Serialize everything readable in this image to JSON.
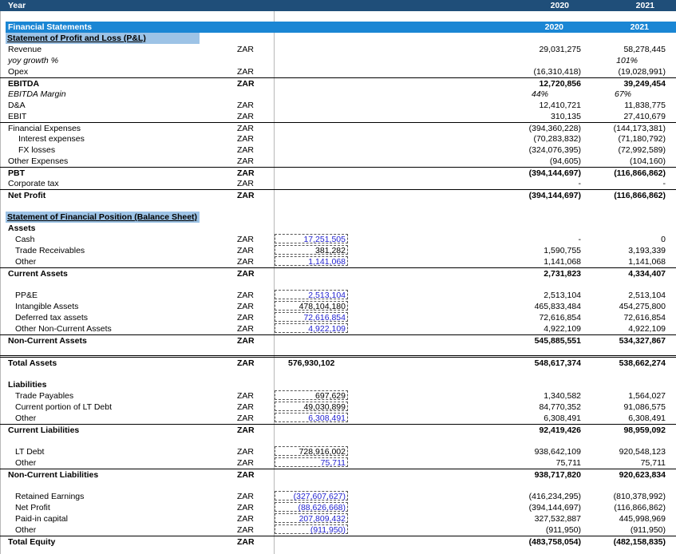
{
  "header": {
    "year_label": "Year",
    "y2020": "2020",
    "y2021": "2021"
  },
  "fs": {
    "title": "Financial Statements",
    "y2020": "2020",
    "y2021": "2021"
  },
  "pl": {
    "title": "Statement of Profit and Loss (P&L)",
    "rows": [
      {
        "label": "Revenue",
        "unit": "ZAR",
        "v2020": "29,031,275",
        "v2021": "58,278,445"
      },
      {
        "label": "yoy growth %",
        "unit": "",
        "v2020": "",
        "v2021": "101%"
      },
      {
        "label": "Opex",
        "unit": "ZAR",
        "v2020": "(16,310,418)",
        "v2021": "(19,028,991)"
      },
      {
        "label": "EBITDA",
        "unit": "ZAR",
        "v2020": "12,720,856",
        "v2021": "39,249,454"
      },
      {
        "label": "EBITDA Margin",
        "unit": "",
        "v2020": "44%",
        "v2021": "67%"
      },
      {
        "label": "D&A",
        "unit": "ZAR",
        "v2020": "12,410,721",
        "v2021": "11,838,775"
      },
      {
        "label": "EBIT",
        "unit": "ZAR",
        "v2020": "310,135",
        "v2021": "27,410,679"
      },
      {
        "label": "Financial Expenses",
        "unit": "ZAR",
        "v2020": "(394,360,228)",
        "v2021": "(144,173,381)"
      },
      {
        "label": "Interest expenses",
        "unit": "ZAR",
        "v2020": "(70,283,832)",
        "v2021": "(71,180,792)"
      },
      {
        "label": "FX losses",
        "unit": "ZAR",
        "v2020": "(324,076,395)",
        "v2021": "(72,992,589)"
      },
      {
        "label": "Other Expenses",
        "unit": "ZAR",
        "v2020": "(94,605)",
        "v2021": "(104,160)"
      },
      {
        "label": "PBT",
        "unit": "ZAR",
        "v2020": "(394,144,697)",
        "v2021": "(116,866,862)"
      },
      {
        "label": "Corporate tax",
        "unit": "ZAR",
        "v2020": "-",
        "v2021": "-"
      },
      {
        "label": "Net Profit",
        "unit": "ZAR",
        "v2020": "(394,144,697)",
        "v2021": "(116,866,862)"
      }
    ]
  },
  "bs": {
    "title": "Statement of Financial Position (Balance Sheet)",
    "rows": [
      {
        "label": "Assets",
        "unit": "",
        "input": "",
        "v2020": "",
        "v2021": ""
      },
      {
        "label": "Cash",
        "unit": "ZAR",
        "input": "17,251,505",
        "v2020": "-",
        "v2021": "0"
      },
      {
        "label": "Trade Receivables",
        "unit": "ZAR",
        "input": "381,282",
        "v2020": "1,590,755",
        "v2021": "3,193,339"
      },
      {
        "label": "Other",
        "unit": "ZAR",
        "input": "1,141,068",
        "v2020": "1,141,068",
        "v2021": "1,141,068"
      },
      {
        "label": "Current Assets",
        "unit": "ZAR",
        "input": "",
        "v2020": "2,731,823",
        "v2021": "4,334,407"
      },
      {
        "label": "PP&E",
        "unit": "ZAR",
        "input": "2,513,104",
        "v2020": "2,513,104",
        "v2021": "2,513,104"
      },
      {
        "label": "Intangible Assets",
        "unit": "ZAR",
        "input": "478,104,180",
        "v2020": "465,833,484",
        "v2021": "454,275,800"
      },
      {
        "label": "Deferred tax assets",
        "unit": "ZAR",
        "input": "72,616,854",
        "v2020": "72,616,854",
        "v2021": "72,616,854"
      },
      {
        "label": "Other Non-Current Assets",
        "unit": "ZAR",
        "input": "4,922,109",
        "v2020": "4,922,109",
        "v2021": "4,922,109"
      },
      {
        "label": "Non-Current Assets",
        "unit": "ZAR",
        "input": "",
        "v2020": "545,885,551",
        "v2021": "534,327,867"
      },
      {
        "label": "Total Assets",
        "unit": "ZAR",
        "input": "576,930,102",
        "v2020": "548,617,374",
        "v2021": "538,662,274"
      },
      {
        "label": "Liabilities",
        "unit": "",
        "input": "",
        "v2020": "",
        "v2021": ""
      },
      {
        "label": "Trade Payables",
        "unit": "ZAR",
        "input": "697,629",
        "v2020": "1,340,582",
        "v2021": "1,564,027"
      },
      {
        "label": "Current portion of LT Debt",
        "unit": "ZAR",
        "input": "49,030,899",
        "v2020": "84,770,352",
        "v2021": "91,086,575"
      },
      {
        "label": "Other",
        "unit": "ZAR",
        "input": "6,308,491",
        "v2020": "6,308,491",
        "v2021": "6,308,491"
      },
      {
        "label": "Current Liabilities",
        "unit": "ZAR",
        "input": "",
        "v2020": "92,419,426",
        "v2021": "98,959,092"
      },
      {
        "label": "LT Debt",
        "unit": "ZAR",
        "input": "728,916,002",
        "v2020": "938,642,109",
        "v2021": "920,548,123"
      },
      {
        "label": "Other",
        "unit": "ZAR",
        "input": "75,711",
        "v2020": "75,711",
        "v2021": "75,711"
      },
      {
        "label": "Non-Current Liabilities",
        "unit": "ZAR",
        "input": "",
        "v2020": "938,717,820",
        "v2021": "920,623,834"
      },
      {
        "label": "Retained Earnings",
        "unit": "ZAR",
        "input": "(327,607,627)",
        "v2020": "(416,234,295)",
        "v2021": "(810,378,992)"
      },
      {
        "label": "Net Profit",
        "unit": "ZAR",
        "input": "(88,626,668)",
        "v2020": "(394,144,697)",
        "v2021": "(116,866,862)"
      },
      {
        "label": "Paid-in capital",
        "unit": "ZAR",
        "input": "207,809,432",
        "v2020": "327,532,887",
        "v2021": "445,998,969"
      },
      {
        "label": "Other",
        "unit": "ZAR",
        "input": "(911,950)",
        "v2020": "(911,950)",
        "v2021": "(911,950)"
      },
      {
        "label": "Total Equity",
        "unit": "ZAR",
        "input": "",
        "v2020": "(483,758,054)",
        "v2021": "(482,158,835)"
      }
    ]
  }
}
